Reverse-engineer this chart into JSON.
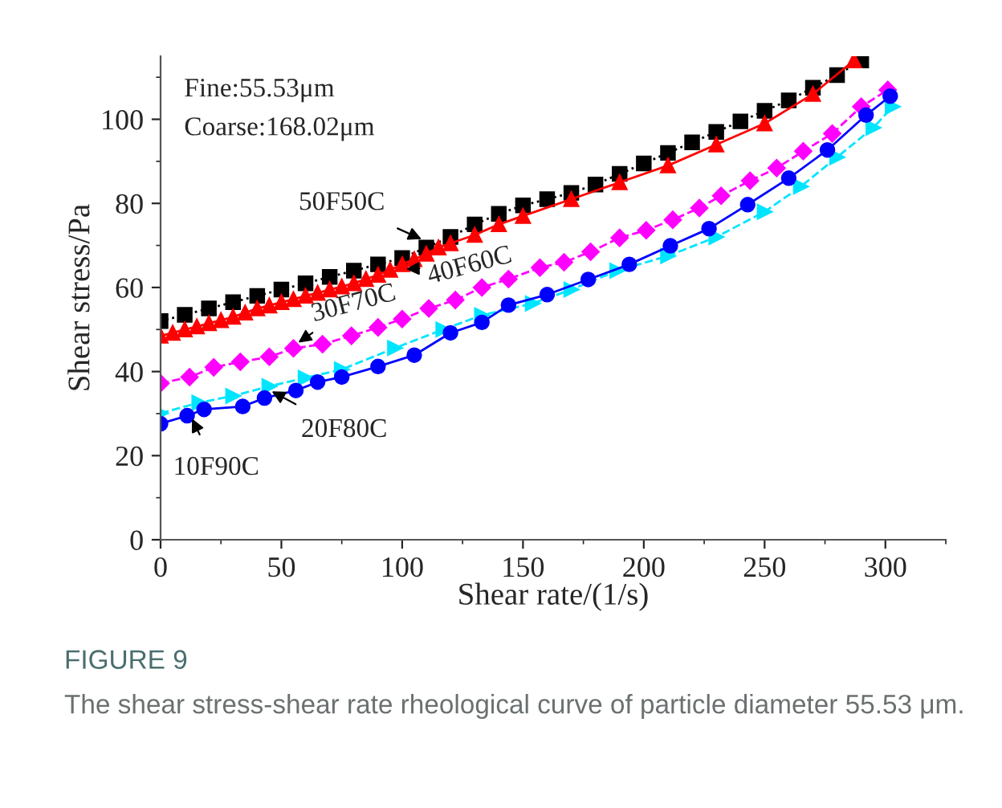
{
  "chart_data": {
    "type": "line",
    "xlabel": "Shear rate/(1/s)",
    "ylabel": "Shear stress/Pa",
    "xlim": [
      0,
      325
    ],
    "xticks": [
      0,
      50,
      100,
      150,
      200,
      250,
      300
    ],
    "ylim": [
      0,
      115
    ],
    "yticks": [
      0,
      20,
      40,
      60,
      80,
      100
    ],
    "grid": false,
    "legend": false,
    "series": [
      {
        "color": "#000000",
        "marker": "square",
        "line_style": "dotted",
        "x": [
          0,
          10,
          20,
          30,
          40,
          50,
          60,
          70,
          80,
          90,
          100,
          110,
          120,
          130,
          140,
          150,
          160,
          170,
          180,
          190,
          200,
          210,
          220,
          230,
          240,
          250,
          260,
          270,
          280,
          290
        ],
        "values": [
          52,
          53.5,
          55,
          56.5,
          58,
          59.5,
          61,
          62.5,
          64,
          65.5,
          67,
          69.5,
          72,
          75,
          77.5,
          79.5,
          81,
          82.5,
          84.5,
          87,
          89.5,
          92,
          94.5,
          97,
          99.5,
          102,
          104.5,
          107.5,
          110.5,
          114
        ]
      },
      {
        "color": "#ff0000",
        "marker": "triangle",
        "line_style": "solid",
        "x": [
          0,
          5,
          10,
          15,
          20,
          25,
          30,
          35,
          40,
          45,
          50,
          55,
          60,
          65,
          70,
          75,
          80,
          85,
          90,
          95,
          100,
          105,
          110,
          115,
          120,
          130,
          140,
          150,
          170,
          190,
          210,
          230,
          250,
          270,
          287
        ],
        "values": [
          48.5,
          49.2,
          50,
          50.7,
          51.5,
          52.2,
          53,
          54,
          55,
          55.7,
          56.5,
          57.2,
          58,
          58.7,
          59.5,
          60.2,
          61,
          62,
          63,
          64.2,
          65.5,
          66.7,
          68,
          69.5,
          70.5,
          72.5,
          75,
          77,
          81,
          85,
          89,
          94,
          99,
          106,
          114
        ]
      },
      {
        "color": "#ff00ff",
        "marker": "diamond",
        "line_style": "dashed",
        "x": [
          0,
          12,
          22,
          33,
          45,
          55,
          67,
          79,
          90,
          100,
          111,
          122,
          133,
          144,
          157,
          167,
          178,
          190,
          201,
          212,
          223,
          232,
          244,
          255,
          266,
          278,
          290,
          301
        ],
        "values": [
          37.2,
          38.7,
          41,
          42.3,
          43.5,
          45.5,
          46.5,
          48.5,
          50.5,
          52.5,
          55,
          57,
          60,
          62,
          64.7,
          66,
          68.5,
          71.8,
          73.6,
          76.1,
          78.9,
          81.8,
          85.4,
          88.4,
          92.4,
          96.6,
          103,
          107
        ]
      },
      {
        "color": "#00e5ff",
        "marker": "triangle_right",
        "line_style": "dashed",
        "x": [
          0,
          16,
          30,
          45,
          60,
          75,
          97,
          117,
          133,
          154,
          170,
          189,
          210,
          230,
          250,
          265,
          280,
          295,
          303
        ],
        "values": [
          30.1,
          32.6,
          34.2,
          36.5,
          38.5,
          40.5,
          45.6,
          50,
          53.4,
          56.2,
          59.5,
          64,
          67.5,
          72,
          78,
          84,
          91,
          98,
          103
        ]
      },
      {
        "color": "#0000ff",
        "marker": "circle",
        "line_style": "solid",
        "x": [
          0,
          11,
          18,
          34,
          43,
          56,
          65,
          75,
          90,
          105,
          120,
          133,
          144,
          160,
          177,
          194,
          211,
          227,
          243,
          260,
          276,
          292,
          302
        ],
        "values": [
          27.6,
          29.5,
          31,
          31.7,
          33.7,
          35.5,
          37.5,
          38.7,
          41.2,
          43.9,
          49.2,
          51.7,
          55.8,
          58.3,
          61.9,
          65.5,
          69.9,
          74,
          79.7,
          86,
          92.7,
          101,
          105.5
        ]
      }
    ],
    "annotations": [
      "Fine:55.53μm",
      "Coarse:168.02μm",
      {
        "text": "50F50C",
        "x": 108,
        "y": 71.5
      },
      {
        "text": "40F60C",
        "x": 101.6,
        "y": 64.4
      },
      {
        "text": "30F70C",
        "x": 57,
        "y": 46.9
      },
      {
        "text": "20F80C",
        "x": 46,
        "y": 35.3
      },
      {
        "text": "10F90C",
        "x": 13,
        "y": 28.8
      },
      "FIGURE 9",
      "The shear stress-shear rate rheological curve of particle diameter 55.53 μm."
    ]
  }
}
